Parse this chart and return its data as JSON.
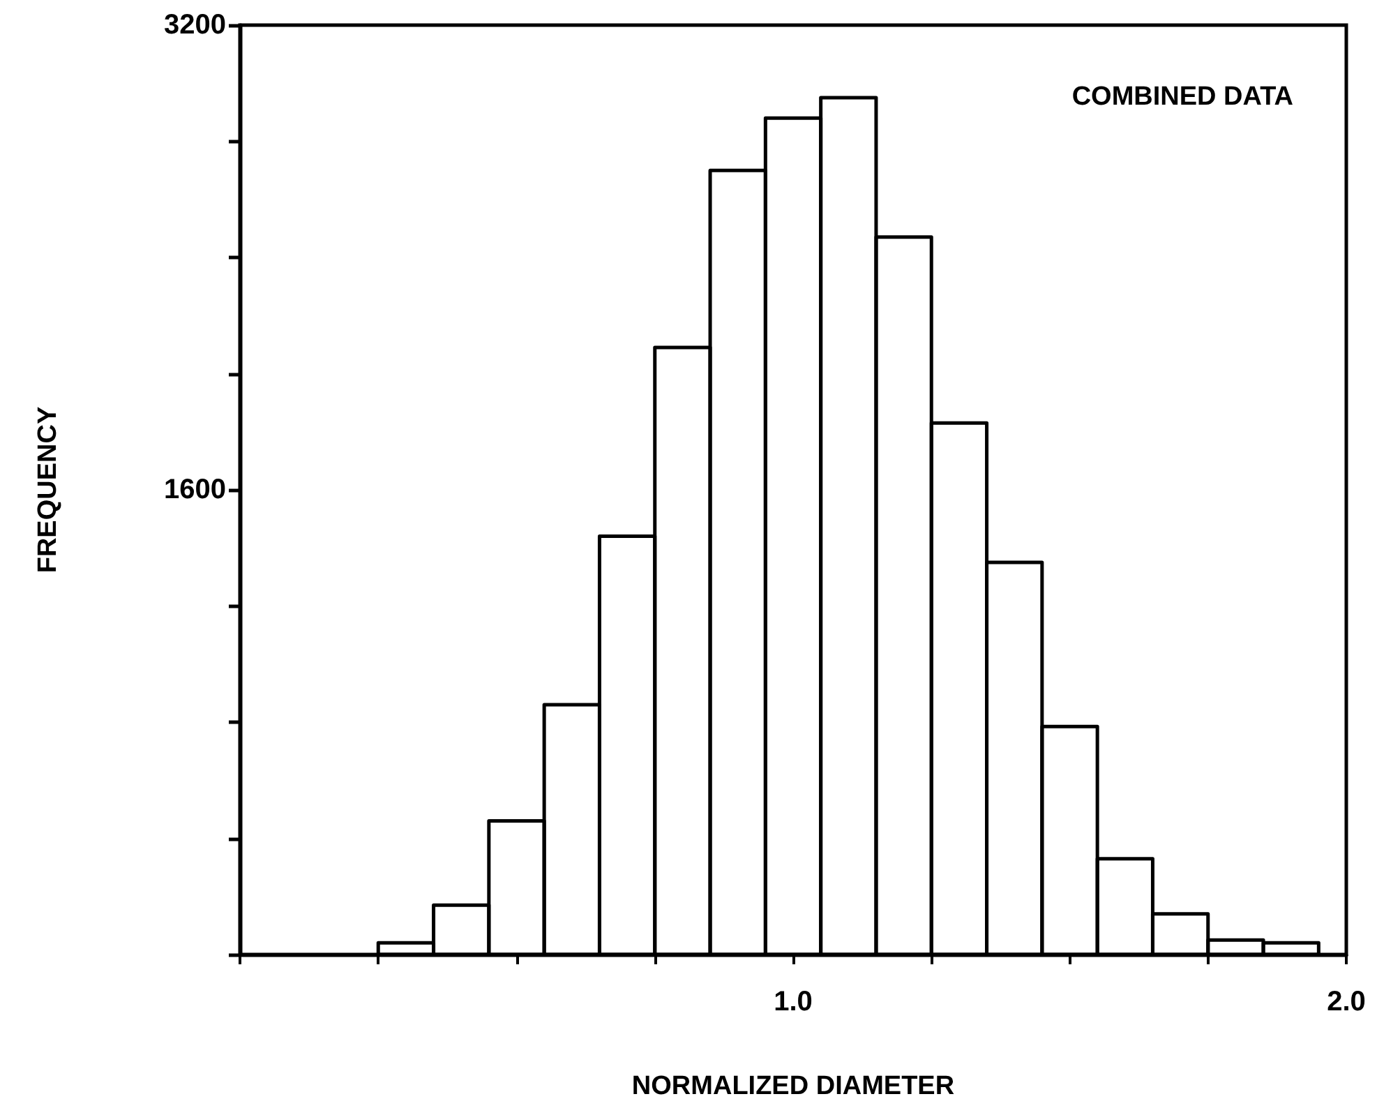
{
  "chart_data": {
    "type": "histogram",
    "xlabel": "NORMALIZED DIAMETER",
    "ylabel": "FREQUENCY",
    "annotations": [
      "COMBINED DATA"
    ],
    "bins": [
      0.25,
      0.35,
      0.45,
      0.55,
      0.65,
      0.75,
      0.85,
      0.95,
      1.05,
      1.15,
      1.25,
      1.35,
      1.45,
      1.55,
      1.65,
      1.75,
      1.85,
      1.95
    ],
    "values": [
      40,
      170,
      460,
      860,
      1440,
      2090,
      2700,
      2880,
      2950,
      2470,
      1830,
      1350,
      785,
      330,
      140,
      50,
      40
    ],
    "color": "#000000",
    "xlim": [
      0,
      2
    ],
    "xticks": [
      {
        "value": 0.25,
        "label": null
      },
      {
        "value": 0.5,
        "label": null
      },
      {
        "value": 0.75,
        "label": null
      },
      {
        "value": 1,
        "label": "1.0"
      },
      {
        "value": 1.25,
        "label": null
      },
      {
        "value": 1.5,
        "label": null
      },
      {
        "value": 1.75,
        "label": null
      },
      {
        "value": 2,
        "label": "2.0"
      }
    ],
    "ylim": [
      0,
      3200
    ],
    "yticks": [
      {
        "value": 400,
        "label": null
      },
      {
        "value": 800,
        "label": null
      },
      {
        "value": 1200,
        "label": null
      },
      1600,
      {
        "value": 2000,
        "label": null
      },
      {
        "value": 2400,
        "label": null
      },
      {
        "value": 2800,
        "label": null
      },
      3200
    ],
    "grid": false
  }
}
